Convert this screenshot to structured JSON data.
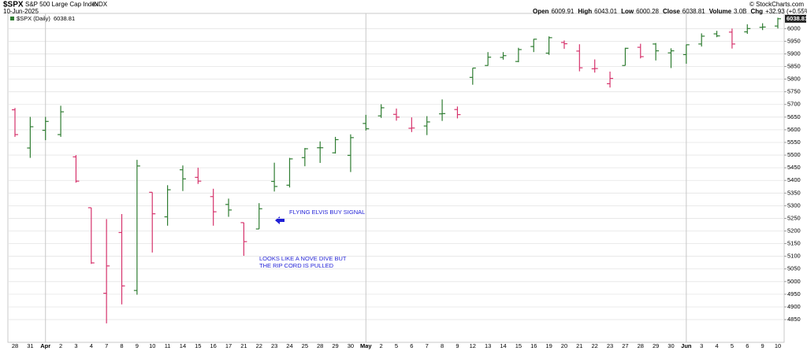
{
  "header": {
    "symbol": "$SPX",
    "name": "S&P 500 Large Cap Index",
    "exchange": "INDX",
    "date": "10-Jun-2025",
    "copyright": "© StockCharts.com",
    "stats": [
      {
        "label": "Open",
        "value": "6009.91"
      },
      {
        "label": "High",
        "value": "6043.01"
      },
      {
        "label": "Low",
        "value": "6000.28"
      },
      {
        "label": "Close",
        "value": "6038.81"
      },
      {
        "label": "Volume",
        "value": "3.0B"
      },
      {
        "label": "Chg",
        "value": "+32.93 (+0.55%)"
      }
    ]
  },
  "chart_data": {
    "type": "ohlc",
    "legend": "$SPX (Daily)",
    "categories": [
      "28",
      "31",
      "Apr",
      "2",
      "3",
      "4",
      "7",
      "8",
      "9",
      "10",
      "11",
      "14",
      "15",
      "16",
      "17",
      "21",
      "22",
      "23",
      "24",
      "25",
      "28",
      "29",
      "30",
      "May",
      "2",
      "5",
      "6",
      "7",
      "8",
      "9",
      "12",
      "13",
      "14",
      "15",
      "16",
      "19",
      "20",
      "21",
      "22",
      "23",
      "27",
      "28",
      "29",
      "30",
      "Jun",
      "3",
      "4",
      "5",
      "6",
      "9",
      "10"
    ],
    "open": [
      5679,
      5528,
      5598,
      5581,
      5493,
      5292,
      4954,
      5194,
      4965,
      5353,
      5256,
      5442,
      5412,
      5336,
      5305,
      5233,
      5208,
      5396,
      5381,
      5490,
      5529,
      5509,
      5499,
      5625,
      5655,
      5661,
      5606,
      5615,
      5663,
      5680,
      5807,
      5854,
      5886,
      5870,
      5929,
      5903,
      5945,
      5911,
      5841,
      5782,
      5854,
      5926,
      5939,
      5904,
      5897,
      5939,
      5979,
      5986,
      5987,
      6005,
      6009.91
    ],
    "high": [
      5686,
      5651,
      5651,
      5695,
      5500,
      5292,
      5247,
      5267,
      5481,
      5353,
      5381,
      5459,
      5450,
      5367,
      5328,
      5233,
      5310,
      5470,
      5489,
      5528,
      5554,
      5572,
      5582,
      5659,
      5701,
      5684,
      5649,
      5654,
      5720,
      5692,
      5844,
      5907,
      5907,
      5924,
      5959,
      5969,
      5953,
      5938,
      5878,
      5830,
      5924,
      5940,
      5943,
      5922,
      5937,
      5981,
      5991,
      6000,
      6017,
      6021,
      6043.01
    ],
    "low": [
      5572,
      5489,
      5559,
      5572,
      5391,
      5070,
      4835,
      4910,
      4948,
      5115,
      5221,
      5358,
      5386,
      5221,
      5256,
      5102,
      5208,
      5356,
      5372,
      5456,
      5469,
      5506,
      5433,
      5597,
      5647,
      5636,
      5591,
      5579,
      5635,
      5645,
      5778,
      5853,
      5877,
      5867,
      5907,
      5896,
      5920,
      5831,
      5826,
      5767,
      5854,
      5882,
      5874,
      5844,
      5861,
      5929,
      5966,
      5921,
      5979,
      5994,
      6000.28
    ],
    "close": [
      5581,
      5612,
      5633,
      5671,
      5397,
      5074,
      5062,
      4983,
      5457,
      5268,
      5363,
      5406,
      5397,
      5276,
      5283,
      5158,
      5288,
      5376,
      5485,
      5525,
      5529,
      5561,
      5569,
      5604,
      5687,
      5650,
      5607,
      5631,
      5664,
      5660,
      5844,
      5887,
      5893,
      5917,
      5958,
      5964,
      5940,
      5845,
      5842,
      5803,
      5922,
      5889,
      5912,
      5912,
      5936,
      5970,
      5971,
      5939,
      6000,
      6006,
      6038.81
    ],
    "up_color": "#2f7d32",
    "down_color": "#d6336c",
    "ylim": [
      4760,
      6060
    ],
    "yticks": [
      4850,
      4900,
      4950,
      5000,
      5050,
      5100,
      5150,
      5200,
      5250,
      5300,
      5350,
      5400,
      5450,
      5500,
      5550,
      5600,
      5650,
      5700,
      5750,
      5800,
      5850,
      5900,
      5950,
      6000
    ],
    "grid": true,
    "annotations": [
      "FLYING ELVIS BUY SIGNAL",
      "LOOKS LIKE A NOVE DIVE BUT",
      "THE RIP CORD IS PULLED"
    ]
  }
}
